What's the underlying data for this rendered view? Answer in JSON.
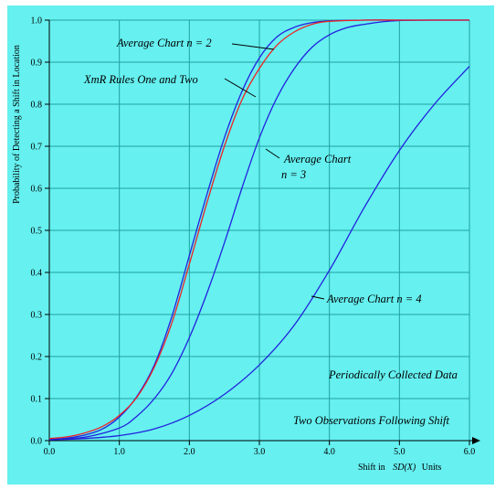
{
  "chart_data": {
    "type": "line",
    "xlabel": "Shift in SD(X) Units",
    "xlabel_parts": [
      "Shift in",
      "SD(X)",
      "Units"
    ],
    "ylabel": "Probability of Detecting a Shift in Location",
    "xlim": [
      0,
      6
    ],
    "ylim": [
      0,
      1
    ],
    "x_ticks": [
      "0.0",
      "1.0",
      "2.0",
      "3.0",
      "4.0",
      "5.0",
      "6.0"
    ],
    "y_ticks": [
      "0.0",
      "0.1",
      "0.2",
      "0.3",
      "0.4",
      "0.5",
      "0.6",
      "0.7",
      "0.8",
      "0.9",
      "1.0"
    ],
    "grid": true,
    "background": "#66f0f0",
    "series": [
      {
        "name": "Average Chart n = 2",
        "color": "#2222dd",
        "x": [
          0,
          0.25,
          0.5,
          0.75,
          1.0,
          1.25,
          1.5,
          1.75,
          2.0,
          2.25,
          2.5,
          2.75,
          3.0,
          3.25,
          3.5,
          3.75,
          4.0,
          4.5,
          5.0,
          5.5,
          6.0
        ],
        "y": [
          0.003,
          0.006,
          0.013,
          0.027,
          0.056,
          0.105,
          0.18,
          0.295,
          0.44,
          0.585,
          0.72,
          0.83,
          0.91,
          0.96,
          0.983,
          0.994,
          0.998,
          1.0,
          1.0,
          1.0,
          1.0
        ]
      },
      {
        "name": "XmR Rules One and Two",
        "color": "#ee2222",
        "x": [
          0,
          0.25,
          0.5,
          0.75,
          1.0,
          1.25,
          1.5,
          1.75,
          2.0,
          2.25,
          2.5,
          2.75,
          3.0,
          3.25,
          3.5,
          3.75,
          4.0,
          4.5,
          5.0,
          5.5,
          6.0
        ],
        "y": [
          0.005,
          0.009,
          0.018,
          0.033,
          0.06,
          0.103,
          0.175,
          0.28,
          0.42,
          0.565,
          0.7,
          0.81,
          0.885,
          0.94,
          0.972,
          0.99,
          0.997,
          1.0,
          1.0,
          1.0,
          1.0
        ]
      },
      {
        "name": "Average Chart n = 3",
        "color": "#2222dd",
        "x": [
          0,
          0.5,
          1.0,
          1.25,
          1.5,
          1.75,
          2.0,
          2.25,
          2.5,
          2.75,
          3.0,
          3.25,
          3.5,
          3.75,
          4.0,
          4.25,
          4.5,
          4.75,
          5.0,
          5.5,
          6.0
        ],
        "y": [
          0.003,
          0.008,
          0.03,
          0.058,
          0.1,
          0.16,
          0.245,
          0.35,
          0.47,
          0.6,
          0.72,
          0.815,
          0.885,
          0.935,
          0.965,
          0.982,
          0.99,
          0.996,
          0.999,
          1.0,
          1.0
        ]
      },
      {
        "name": "Two Observations Following Shift",
        "color": "#2222dd",
        "x": [
          0,
          0.5,
          1.0,
          1.5,
          2.0,
          2.5,
          3.0,
          3.5,
          4.0,
          4.5,
          5.0,
          5.5,
          6.0
        ],
        "y": [
          0.002,
          0.005,
          0.012,
          0.028,
          0.06,
          0.11,
          0.18,
          0.275,
          0.405,
          0.555,
          0.69,
          0.8,
          0.89
        ]
      }
    ],
    "annotations": [
      "Average Chart n = 2",
      "XmR Rules One and Two",
      "Average Chart",
      "n = 3",
      "Average Chart n = 4",
      "Periodically Collected Data",
      "Two Observations Following Shift"
    ]
  }
}
